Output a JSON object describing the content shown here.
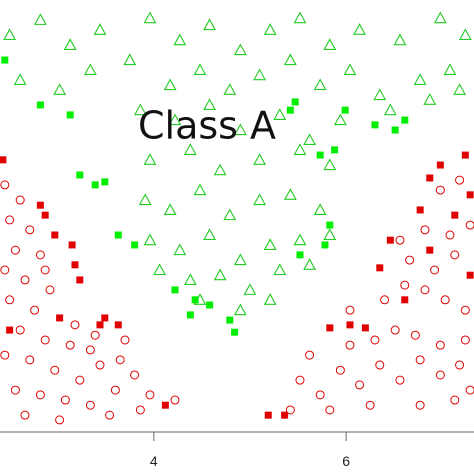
{
  "chart_data": {
    "type": "scatter",
    "annotation": "Class A",
    "xlim": [
      2.4,
      7.33
    ],
    "ylim": [
      0,
      10
    ],
    "xticks": [
      4,
      6
    ],
    "grid": false,
    "series": [
      {
        "color": "#22cc22",
        "marker": "triangle-open",
        "x": [
          2.5,
          2.82,
          3.13,
          3.44,
          3.96,
          4.27,
          4.58,
          4.9,
          5.21,
          5.52,
          5.83,
          6.14,
          6.56,
          6.98,
          7.24,
          2.61,
          3.02,
          3.34,
          3.75,
          4.17,
          4.48,
          4.79,
          5.1,
          5.42,
          5.73,
          6.04,
          6.35,
          6.77,
          7.08,
          3.86,
          4.22,
          4.58,
          4.9,
          5.31,
          5.62,
          5.94,
          6.46,
          6.87,
          7.18,
          3.96,
          4.38,
          4.69,
          5.1,
          5.52,
          5.83,
          3.91,
          4.17,
          4.48,
          4.79,
          5.1,
          5.42,
          5.73,
          3.96,
          4.27,
          4.58,
          4.9,
          5.21,
          5.52,
          5.83,
          4.06,
          4.38,
          4.69,
          5.0,
          5.31,
          5.62,
          4.48,
          4.9,
          5.21
        ],
        "y": [
          9.19,
          9.54,
          8.96,
          9.31,
          9.58,
          9.07,
          9.42,
          8.84,
          9.31,
          9.58,
          8.96,
          9.31,
          9.07,
          9.58,
          9.19,
          8.15,
          7.92,
          8.38,
          8.61,
          8.03,
          8.38,
          7.92,
          8.26,
          8.61,
          8.03,
          8.38,
          7.8,
          8.15,
          8.38,
          7.45,
          7.22,
          7.57,
          6.99,
          7.34,
          6.76,
          7.22,
          7.45,
          7.69,
          7.92,
          6.3,
          6.53,
          6.06,
          6.3,
          6.53,
          6.18,
          5.37,
          5.14,
          5.6,
          5.02,
          5.37,
          5.49,
          5.14,
          4.44,
          4.21,
          4.56,
          3.98,
          4.33,
          4.44,
          4.56,
          3.75,
          3.52,
          3.63,
          3.29,
          3.75,
          3.87,
          3.06,
          2.82,
          3.06
        ]
      },
      {
        "color": "#00ee00",
        "marker": "square",
        "x": [
          2.82,
          3.13,
          3.23,
          3.39,
          3.49,
          3.63,
          3.8,
          4.22,
          4.43,
          4.38,
          4.58,
          4.84,
          4.79,
          5.83,
          5.78,
          5.52,
          5.42,
          5.47,
          5.99,
          6.3,
          6.51,
          6.61,
          5.88,
          5.73,
          2.45
        ],
        "y": [
          7.57,
          7.34,
          5.95,
          5.72,
          5.79,
          4.56,
          4.33,
          3.29,
          3.06,
          2.71,
          2.94,
          2.31,
          2.59,
          4.79,
          4.33,
          4.1,
          7.45,
          7.64,
          7.45,
          7.11,
          6.99,
          7.22,
          6.53,
          6.41,
          8.61
        ]
      },
      {
        "color": "#e00000",
        "marker": "square",
        "x": [
          2.43,
          2.82,
          2.87,
          2.97,
          3.15,
          3.18,
          3.23,
          3.02,
          3.44,
          3.63,
          3.49,
          2.5,
          4.12,
          5.19,
          5.36,
          5.83,
          6.04,
          6.2,
          6.35,
          6.46,
          6.61,
          6.77,
          6.98,
          6.87,
          7.24,
          7.29,
          7.13,
          6.87,
          7.29
        ],
        "y": [
          6.3,
          5.25,
          5.02,
          4.56,
          4.33,
          3.87,
          3.52,
          2.64,
          2.48,
          2.48,
          2.64,
          2.36,
          0.62,
          0.39,
          0.39,
          2.41,
          2.48,
          2.41,
          3.8,
          4.44,
          3.06,
          5.14,
          6.18,
          5.88,
          6.41,
          5.49,
          5.02,
          4.21,
          3.63
        ]
      },
      {
        "color": "#e00000",
        "marker": "circle-open",
        "x": [
          2.45,
          2.61,
          2.5,
          2.71,
          2.56,
          2.82,
          2.45,
          2.66,
          2.92,
          2.5,
          2.76,
          2.61,
          2.87,
          3.13,
          3.34,
          2.45,
          2.71,
          2.97,
          3.23,
          3.44,
          3.65,
          2.56,
          2.82,
          3.08,
          3.34,
          3.6,
          3.8,
          3.96,
          4.22,
          2.66,
          3.02,
          3.54,
          3.86,
          2.87,
          3.18,
          3.39,
          3.7,
          5.52,
          5.73,
          5.94,
          6.14,
          6.35,
          6.56,
          6.77,
          6.98,
          7.18,
          5.62,
          6.04,
          6.3,
          6.51,
          6.72,
          6.98,
          7.24,
          6.4,
          6.61,
          6.82,
          7.03,
          7.24,
          6.66,
          6.92,
          7.13,
          6.56,
          6.82,
          7.08,
          7.29,
          6.98,
          7.18,
          5.42,
          5.83,
          6.25,
          6.77,
          7.13,
          6.04,
          7.29
        ],
        "y": [
          5.72,
          5.37,
          4.91,
          4.68,
          4.21,
          4.1,
          3.75,
          3.52,
          3.29,
          3.06,
          2.82,
          2.36,
          2.13,
          2.01,
          1.9,
          1.78,
          1.67,
          1.43,
          1.2,
          1.55,
          1.67,
          0.97,
          0.86,
          0.74,
          0.62,
          0.97,
          1.32,
          0.86,
          0.74,
          0.39,
          0.28,
          0.39,
          0.51,
          3.75,
          2.48,
          2.24,
          2.13,
          1.2,
          0.86,
          1.43,
          1.09,
          1.55,
          1.2,
          1.67,
          1.32,
          1.55,
          1.78,
          2.01,
          2.13,
          2.36,
          2.24,
          2.01,
          2.13,
          3.06,
          3.4,
          3.29,
          3.06,
          2.82,
          3.98,
          3.75,
          4.1,
          4.44,
          4.68,
          4.56,
          4.79,
          5.6,
          5.83,
          0.51,
          0.51,
          0.62,
          0.62,
          0.74,
          2.82,
          0.97
        ]
      }
    ]
  }
}
